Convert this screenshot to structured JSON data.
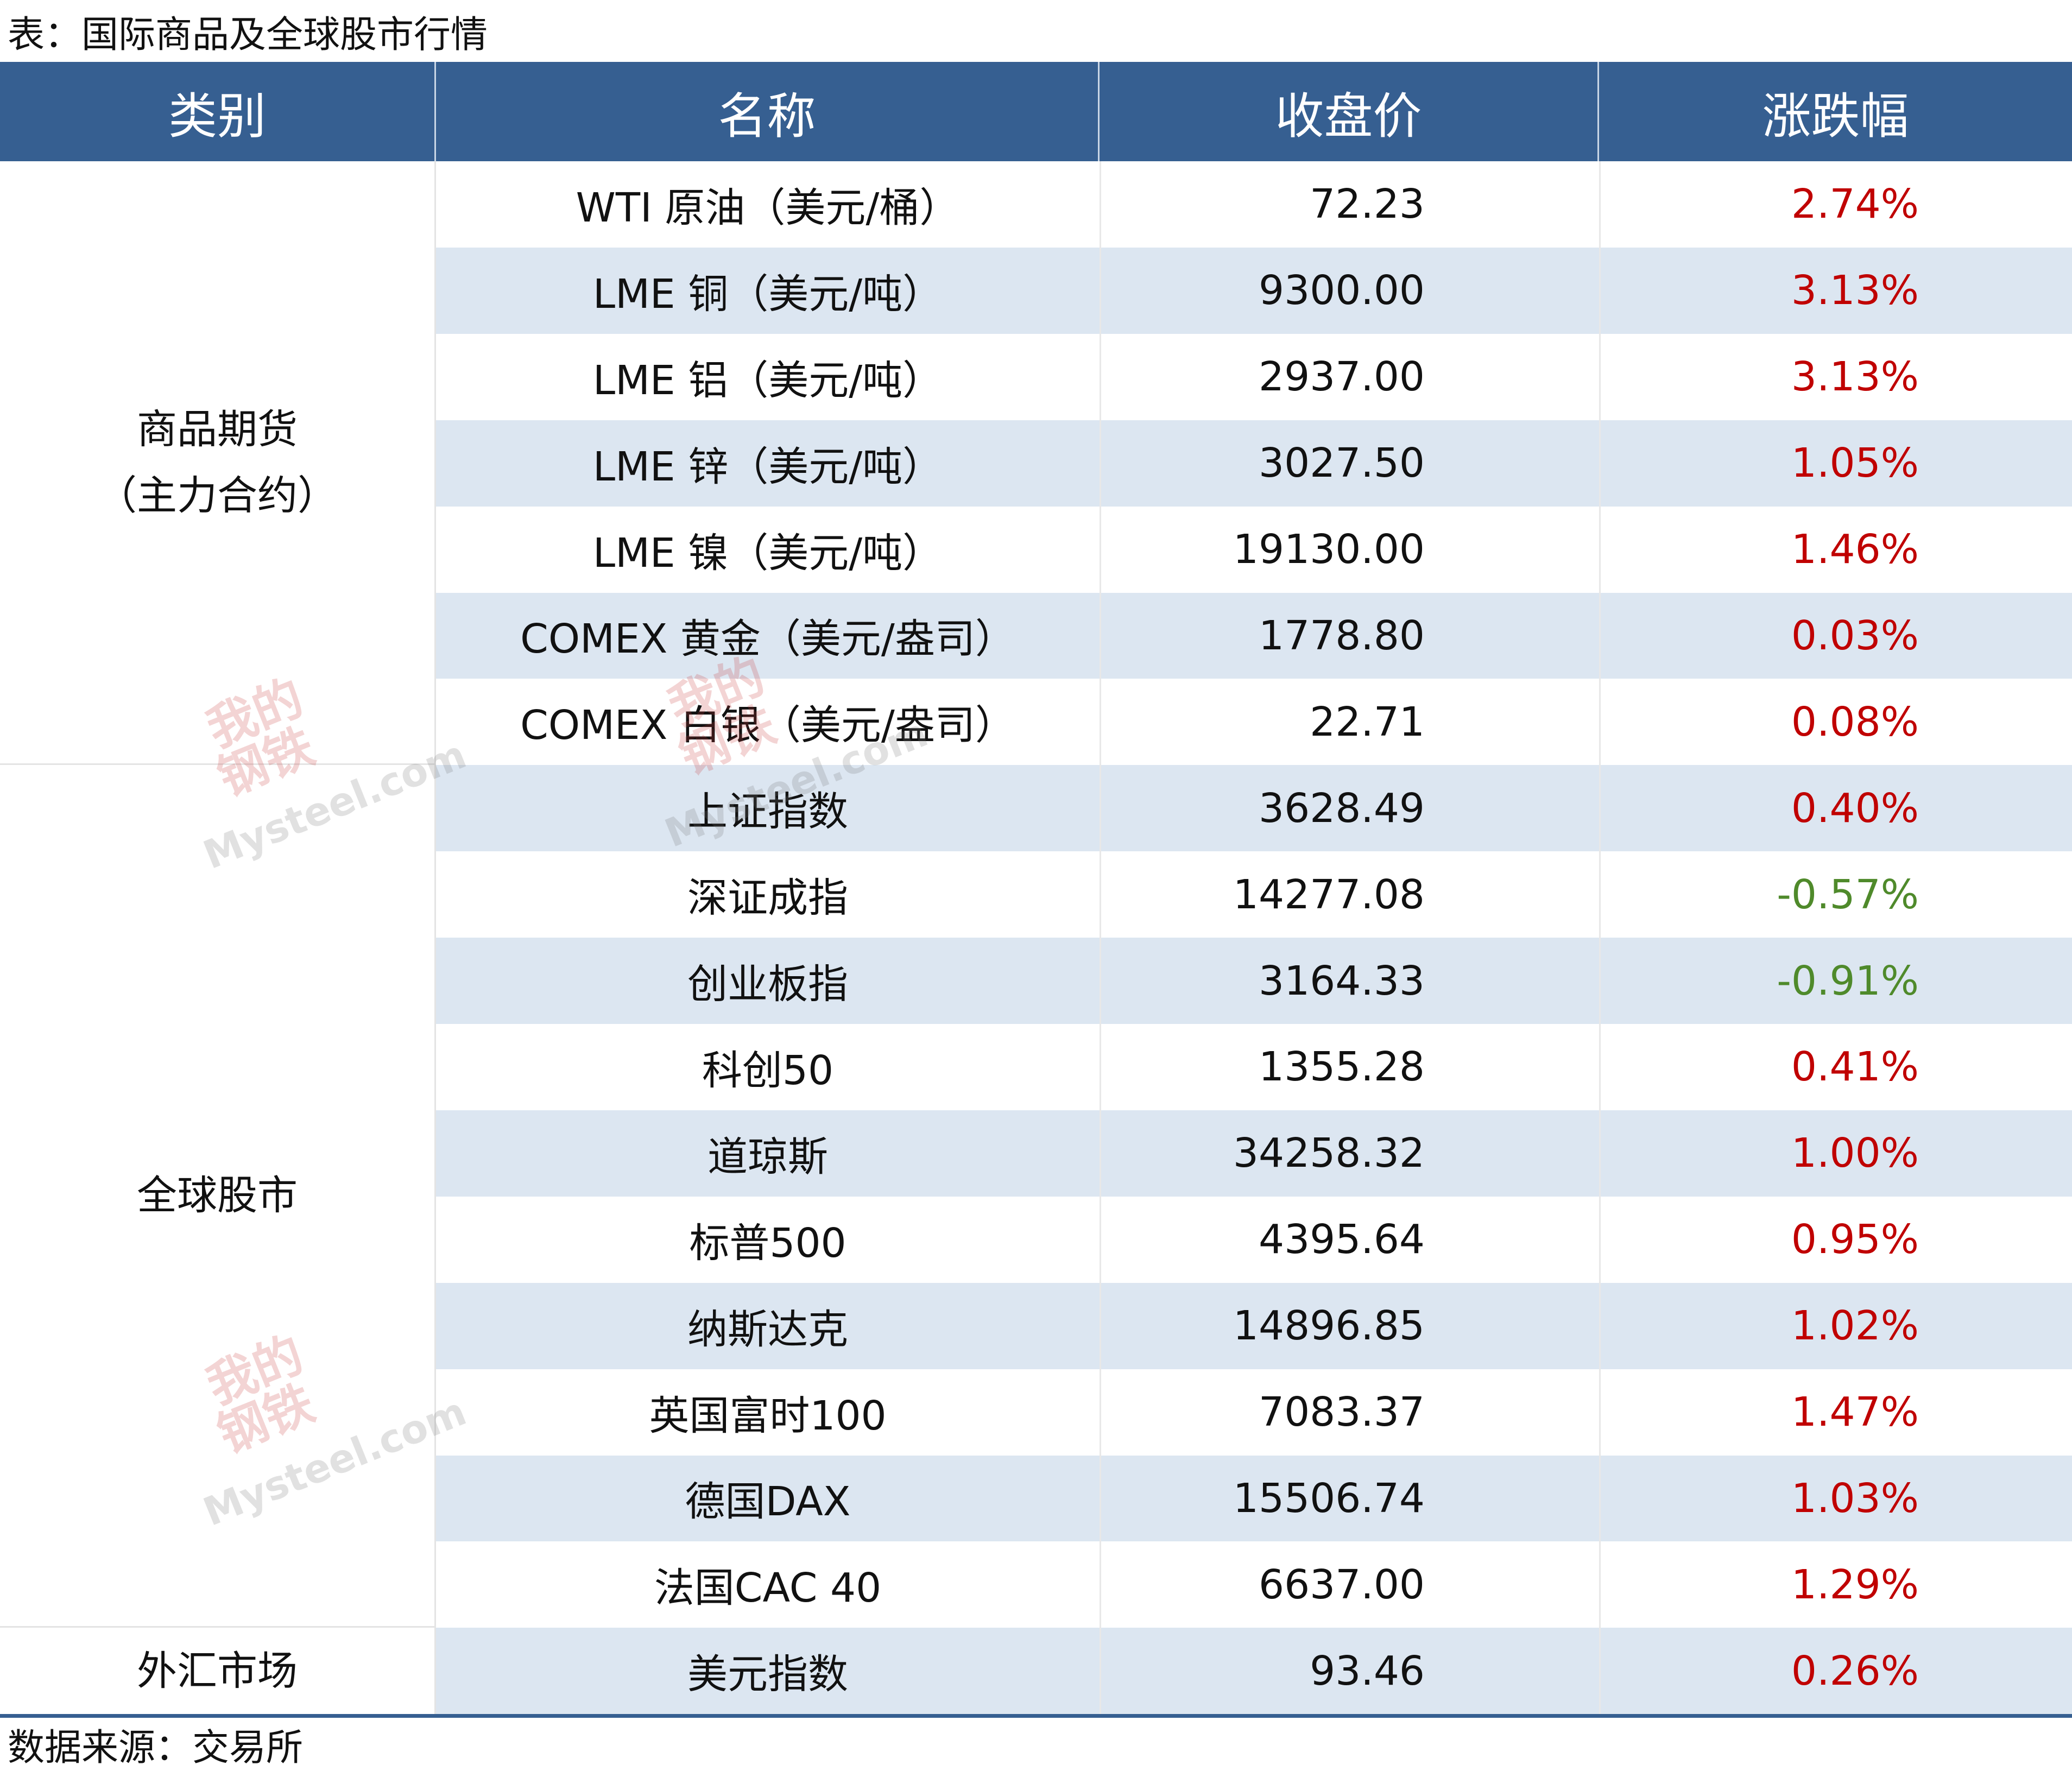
{
  "title": "表：国际商品及全球股市行情",
  "header": [
    "类别",
    "名称",
    "收盘价",
    "涨跌幅"
  ],
  "up_color": "#c00000",
  "down_color": "#4f8a2b",
  "groups": [
    {
      "label": [
        "商品期货",
        "（主力合约）"
      ],
      "rows": [
        [
          "WTI 原油（美元/桶）",
          "72.23",
          "2.74%"
        ],
        [
          "LME 铜（美元/吨）",
          "9300.00",
          "3.13%"
        ],
        [
          "LME 铝（美元/吨）",
          "2937.00",
          "3.13%"
        ],
        [
          "LME 锌（美元/吨）",
          "3027.50",
          "1.05%"
        ],
        [
          "LME 镍（美元/吨）",
          "19130.00",
          "1.46%"
        ],
        [
          "COMEX 黄金（美元/盎司）",
          "1778.80",
          "0.03%"
        ],
        [
          "COMEX 白银（美元/盎司）",
          "22.71",
          "0.08%"
        ]
      ]
    },
    {
      "label": [
        "全球股市"
      ],
      "rows": [
        [
          "上证指数",
          "3628.49",
          "0.40%"
        ],
        [
          "深证成指",
          "14277.08",
          "-0.57%"
        ],
        [
          "创业板指",
          "3164.33",
          "-0.91%"
        ],
        [
          "科创50",
          "1355.28",
          "0.41%"
        ],
        [
          "道琼斯",
          "34258.32",
          "1.00%"
        ],
        [
          "标普500",
          "4395.64",
          "0.95%"
        ],
        [
          "纳斯达克",
          "14896.85",
          "1.02%"
        ],
        [
          "英国富时100",
          "7083.37",
          "1.47%"
        ],
        [
          "德国DAX",
          "15506.74",
          "1.03%"
        ],
        [
          "法国CAC 40",
          "6637.00",
          "1.29%"
        ]
      ]
    },
    {
      "label": [
        "外汇市场"
      ],
      "rows": [
        [
          "美元指数",
          "93.46",
          "0.26%"
        ]
      ]
    }
  ],
  "source": "数据来源：交易所",
  "watermark": {
    "cn": [
      "我的",
      "钢铁"
    ],
    "en": "Mysteel.com"
  }
}
